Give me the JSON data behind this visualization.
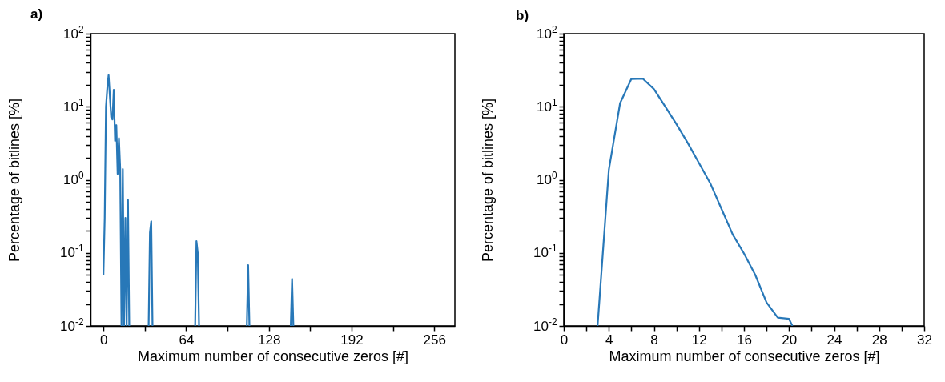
{
  "chart_data": [
    {
      "type": "line",
      "annotations": [
        "a)"
      ],
      "xlabel": "Maximum number of consecutive zeros [#]",
      "ylabel": "Percentage of bitlines [%]",
      "log": "y",
      "grid": false,
      "marker": "none",
      "line_style": "solid",
      "xlim": [
        -10,
        272
      ],
      "xticks": [
        0,
        {
          "value": 32,
          "label": null
        },
        64,
        {
          "value": 96,
          "label": null
        },
        128,
        {
          "value": 160,
          "label": null
        },
        192,
        {
          "value": 224,
          "label": null
        },
        256
      ],
      "ylim": [
        0.01,
        100
      ],
      "yticks": [
        {
          "value": 0.01,
          "label": "10$^{-2}$"
        },
        {
          "value": 0.02,
          "label": null
        },
        {
          "value": 0.03,
          "label": null
        },
        {
          "value": 0.04,
          "label": null
        },
        {
          "value": 0.05,
          "label": null
        },
        {
          "value": 0.06,
          "label": null
        },
        {
          "value": 0.07,
          "label": null
        },
        {
          "value": 0.08,
          "label": null
        },
        {
          "value": 0.09,
          "label": null
        },
        {
          "value": 0.1,
          "label": "10$^{-1}$"
        },
        {
          "value": 0.2,
          "label": null
        },
        {
          "value": 0.3,
          "label": null
        },
        {
          "value": 0.4,
          "label": null
        },
        {
          "value": 0.5,
          "label": null
        },
        {
          "value": 0.6,
          "label": null
        },
        {
          "value": 0.7,
          "label": null
        },
        {
          "value": 0.8,
          "label": null
        },
        {
          "value": 0.9,
          "label": null
        },
        {
          "value": 1,
          "label": "10$^{0}$"
        },
        {
          "value": 2,
          "label": null
        },
        {
          "value": 3,
          "label": null
        },
        {
          "value": 4,
          "label": null
        },
        {
          "value": 5,
          "label": null
        },
        {
          "value": 6,
          "label": null
        },
        {
          "value": 7,
          "label": null
        },
        {
          "value": 8,
          "label": null
        },
        {
          "value": 9,
          "label": null
        },
        {
          "value": 10,
          "label": "10$^{1}$"
        },
        {
          "value": 20,
          "label": null
        },
        {
          "value": 30,
          "label": null
        },
        {
          "value": 40,
          "label": null
        },
        {
          "value": 50,
          "label": null
        },
        {
          "value": 60,
          "label": null
        },
        {
          "value": 70,
          "label": null
        },
        {
          "value": 80,
          "label": null
        },
        {
          "value": 90,
          "label": null
        },
        {
          "value": 100,
          "label": "10$^{2}$"
        }
      ],
      "series": [
        {
          "color": "#2878b8",
          "x": [
            0,
            1,
            2,
            3,
            4,
            5,
            6,
            7,
            8,
            9,
            10,
            11,
            12,
            13,
            14,
            15,
            16,
            17,
            18,
            19,
            20,
            21,
            35,
            36,
            37,
            38,
            39,
            71,
            72,
            73,
            74,
            75,
            111,
            112,
            113,
            114,
            145,
            146,
            147
          ],
          "values": [
            0.05,
            0.3,
            10,
            18,
            27,
            14,
            7.2,
            6.7,
            17,
            3.4,
            5.6,
            1.2,
            3.7,
            1.4,
            0.01,
            1.4,
            0.01,
            0.3,
            0.01,
            0.53,
            0.01,
            null,
            0.01,
            0.19,
            0.27,
            0.01,
            null,
            0.01,
            0.145,
            0.1,
            0.01,
            null,
            0.01,
            0.068,
            0.01,
            null,
            0.01,
            0.044,
            0.01
          ]
        }
      ]
    },
    {
      "type": "line",
      "annotations": [
        "b)"
      ],
      "xlabel": "Maximum number of consecutive zeros [#]",
      "ylabel": "Percentage of bitlines [%]",
      "log": "y",
      "grid": false,
      "marker": "none",
      "line_style": "solid",
      "xlim": [
        0,
        32
      ],
      "xticks": [
        0,
        {
          "value": 2,
          "label": null
        },
        4,
        {
          "value": 6,
          "label": null
        },
        8,
        {
          "value": 10,
          "label": null
        },
        12,
        {
          "value": 14,
          "label": null
        },
        16,
        {
          "value": 18,
          "label": null
        },
        20,
        {
          "value": 22,
          "label": null
        },
        24,
        {
          "value": 26,
          "label": null
        },
        28,
        {
          "value": 30,
          "label": null
        },
        32
      ],
      "ylim": [
        0.01,
        100
      ],
      "yticks": [
        {
          "value": 0.01,
          "label": "10$^{-2}$"
        },
        {
          "value": 0.02,
          "label": null
        },
        {
          "value": 0.03,
          "label": null
        },
        {
          "value": 0.04,
          "label": null
        },
        {
          "value": 0.05,
          "label": null
        },
        {
          "value": 0.06,
          "label": null
        },
        {
          "value": 0.07,
          "label": null
        },
        {
          "value": 0.08,
          "label": null
        },
        {
          "value": 0.09,
          "label": null
        },
        {
          "value": 0.1,
          "label": "10$^{-1}$"
        },
        {
          "value": 0.2,
          "label": null
        },
        {
          "value": 0.3,
          "label": null
        },
        {
          "value": 0.4,
          "label": null
        },
        {
          "value": 0.5,
          "label": null
        },
        {
          "value": 0.6,
          "label": null
        },
        {
          "value": 0.7,
          "label": null
        },
        {
          "value": 0.8,
          "label": null
        },
        {
          "value": 0.9,
          "label": null
        },
        {
          "value": 1,
          "label": "10$^{0}$"
        },
        {
          "value": 2,
          "label": null
        },
        {
          "value": 3,
          "label": null
        },
        {
          "value": 4,
          "label": null
        },
        {
          "value": 5,
          "label": null
        },
        {
          "value": 6,
          "label": null
        },
        {
          "value": 7,
          "label": null
        },
        {
          "value": 8,
          "label": null
        },
        {
          "value": 9,
          "label": null
        },
        {
          "value": 10,
          "label": "10$^{1}$"
        },
        {
          "value": 20,
          "label": null
        },
        {
          "value": 30,
          "label": null
        },
        {
          "value": 40,
          "label": null
        },
        {
          "value": 50,
          "label": null
        },
        {
          "value": 60,
          "label": null
        },
        {
          "value": 70,
          "label": null
        },
        {
          "value": 80,
          "label": null
        },
        {
          "value": 90,
          "label": null
        },
        {
          "value": 100,
          "label": "10$^{2}$"
        }
      ],
      "series": [
        {
          "color": "#2878b8",
          "x": [
            3,
            4,
            5,
            6,
            7,
            8,
            9,
            10,
            11,
            12,
            13,
            14,
            15,
            16,
            17,
            18,
            19,
            20,
            20.3
          ],
          "values": [
            0.01,
            1.37,
            11.2,
            24,
            24.3,
            17.5,
            10.1,
            5.8,
            3.2,
            1.7,
            0.9,
            0.4,
            0.178,
            0.098,
            0.05,
            0.021,
            0.013,
            0.0125,
            0.01
          ]
        }
      ]
    }
  ]
}
